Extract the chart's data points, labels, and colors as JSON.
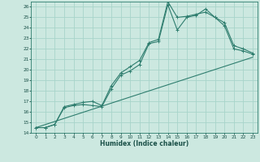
{
  "title": "",
  "xlabel": "Humidex (Indice chaleur)",
  "ylabel": "",
  "bg_color": "#cce8e0",
  "grid_color": "#a8d4ca",
  "line_color": "#2e7d6e",
  "xlim": [
    -0.5,
    23.5
  ],
  "ylim": [
    14,
    26.5
  ],
  "xticks": [
    0,
    1,
    2,
    3,
    4,
    5,
    6,
    7,
    8,
    9,
    10,
    11,
    12,
    13,
    14,
    15,
    16,
    17,
    18,
    19,
    20,
    21,
    22,
    23
  ],
  "yticks": [
    14,
    15,
    16,
    17,
    18,
    19,
    20,
    21,
    22,
    23,
    24,
    25,
    26
  ],
  "line1_x": [
    0,
    1,
    2,
    3,
    4,
    5,
    6,
    7,
    8,
    9,
    10,
    11,
    12,
    13,
    14,
    15,
    16,
    17,
    18,
    19,
    20,
    21,
    22,
    23
  ],
  "line1_y": [
    14.5,
    14.5,
    14.8,
    16.4,
    16.6,
    16.7,
    16.6,
    16.5,
    18.2,
    19.5,
    19.9,
    20.5,
    22.5,
    22.7,
    26.2,
    23.8,
    25.0,
    25.2,
    25.8,
    25.0,
    24.2,
    22.0,
    21.8,
    21.5
  ],
  "line2_x": [
    0,
    1,
    2,
    3,
    4,
    5,
    6,
    7,
    8,
    9,
    10,
    11,
    12,
    13,
    14,
    15,
    16,
    17,
    18,
    19,
    20,
    21,
    22,
    23
  ],
  "line2_y": [
    14.5,
    14.5,
    14.8,
    16.5,
    16.7,
    16.9,
    17.0,
    16.6,
    18.5,
    19.7,
    20.3,
    20.9,
    22.6,
    22.9,
    26.5,
    25.0,
    25.1,
    25.3,
    25.5,
    25.0,
    24.5,
    22.3,
    22.0,
    21.6
  ],
  "line3_x": [
    0,
    23
  ],
  "line3_y": [
    14.5,
    21.2
  ]
}
